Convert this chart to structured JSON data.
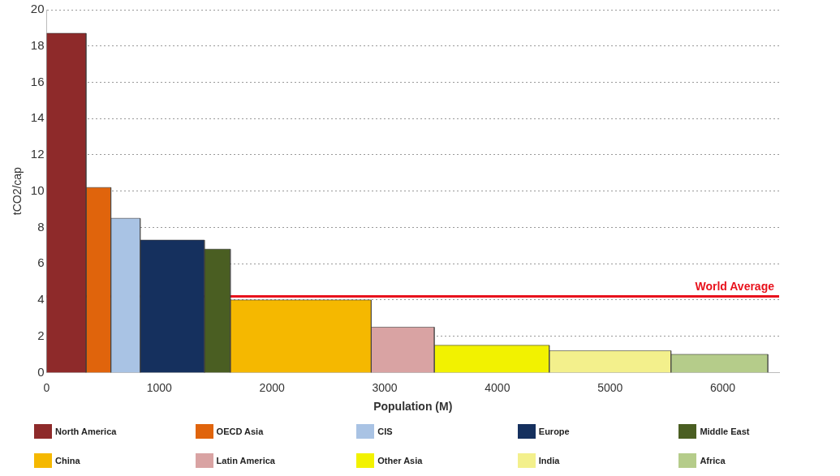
{
  "chart_data": {
    "type": "histogram",
    "xlabel": "Population (M)",
    "ylabel": "tCO2/cap",
    "bins": [
      0,
      350,
      570,
      830,
      1400,
      1630,
      2880,
      3440,
      4460,
      5540,
      6400
    ],
    "values": [
      18.7,
      10.2,
      8.5,
      7.3,
      6.8,
      4.0,
      2.5,
      1.5,
      1.2,
      1.0
    ],
    "categories": [
      "North America",
      "OECD Asia",
      "CIS",
      "Europe",
      "Middle East",
      "China",
      "Latin America",
      "Other Asia",
      "India",
      "Africa"
    ],
    "colors": [
      "#8e2a2a",
      "#e0640c",
      "#a9c3e4",
      "#15305e",
      "#4a5e22",
      "#f5b800",
      "#d9a3a3",
      "#f2f200",
      "#f3f08c",
      "#b5cc8a"
    ],
    "xlim": [
      0,
      6500
    ],
    "xticks": [
      0,
      1000,
      2000,
      3000,
      4000,
      5000,
      6000
    ],
    "ylim": [
      0,
      20
    ],
    "yticks": [
      0,
      2,
      4,
      6,
      8,
      10,
      12,
      14,
      16,
      18,
      20
    ],
    "grid": "y",
    "legend": "bottom",
    "ref_lines": [
      {
        "axis": "y",
        "value": 4.2,
        "label": "World Average",
        "color": "#e8121c"
      }
    ]
  }
}
